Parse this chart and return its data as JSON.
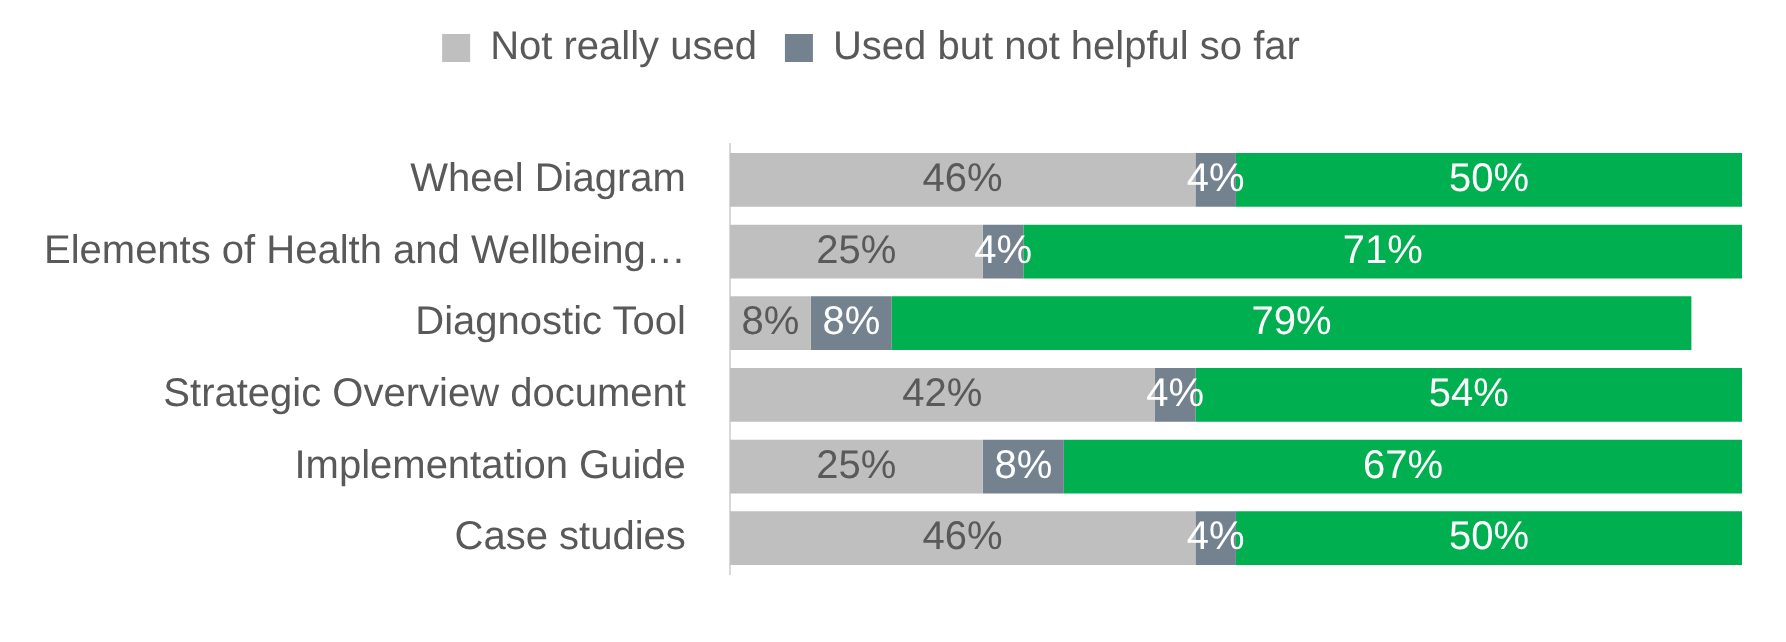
{
  "chart_data": {
    "type": "bar",
    "orientation": "horizontal",
    "stacked": true,
    "legend": "top",
    "tick_labels": "y",
    "categories": [
      "Wheel Diagram",
      "Elements of Health and Wellbeing…",
      "Diagnostic Tool",
      "Strategic Overview document",
      "Implementation Guide",
      "Case studies"
    ],
    "series": [
      {
        "name": "Not really used",
        "color": "#bfbfbf",
        "values": [
          46,
          25,
          8,
          42,
          25,
          46
        ],
        "value_labels": [
          "46%",
          "25%",
          "8%",
          "42%",
          "25%",
          "46%"
        ]
      },
      {
        "name": "Used but not helpful so far",
        "color": "#748290",
        "values": [
          4,
          4,
          8,
          4,
          8,
          4
        ],
        "value_labels": [
          "4%",
          "4%",
          "8%",
          "4%",
          "8%",
          "4%"
        ]
      },
      {
        "color": "#00b050",
        "values": [
          50,
          71,
          79,
          54,
          67,
          50
        ],
        "value_labels": [
          "50%",
          "71%",
          "79%",
          "54%",
          "67%",
          "50%"
        ]
      }
    ]
  }
}
